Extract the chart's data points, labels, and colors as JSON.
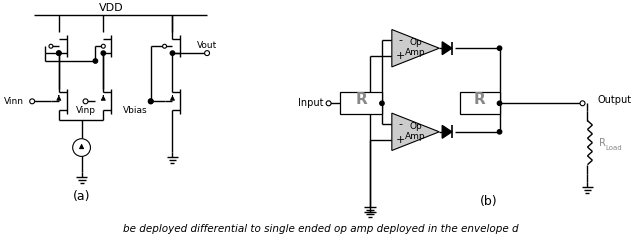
{
  "bg_color": "#ffffff",
  "line_color": "#000000",
  "gray_color": "#888888",
  "fig_width": 6.4,
  "fig_height": 2.36,
  "dpi": 100,
  "label_a": "(a)",
  "label_b": "(b)",
  "vdd_text": "VDD",
  "vinn_text": "Vinn",
  "vinp_text": "Vinp",
  "vbias_text": "Vbias",
  "vout_text": "Vout",
  "input_text": "Input",
  "output_text": "Output",
  "r_text": "R",
  "rload_text": "R",
  "rload_sub": "Load",
  "op_text1": "Op",
  "op_text2": "Amp",
  "minus_text": "-",
  "plus_text": "+",
  "caption": "be deployed differential to single ended op amp deployed in the envelope d"
}
